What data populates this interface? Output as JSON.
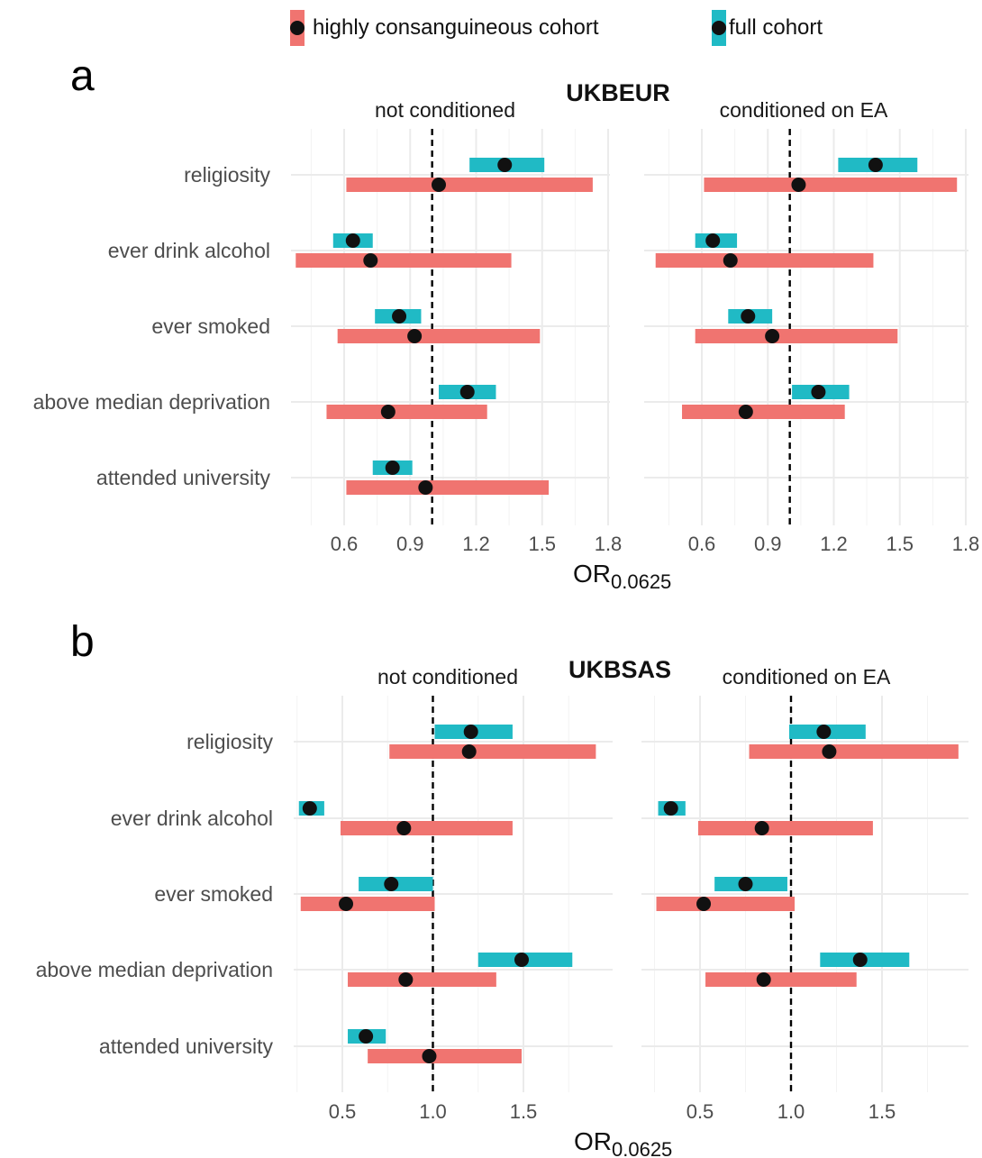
{
  "legend": {
    "items": [
      {
        "label": "highly consanguineous cohort",
        "color": "#F07470"
      },
      {
        "label": "full cohort",
        "color": "#20BAC5"
      }
    ]
  },
  "chart_data": [
    {
      "type": "forest",
      "panel_letter": "a",
      "title": "UKBEUR",
      "xlabel_main": "OR",
      "xlabel_sub": "0.0625",
      "reference_line": 1.0,
      "x_ticks": [
        0.6,
        0.9,
        1.2,
        1.5,
        1.8
      ],
      "x_tick_labels": [
        "0.6",
        "0.9",
        "1.2",
        "1.5",
        "1.8"
      ],
      "xlim": [
        0.45,
        1.85
      ],
      "categories": [
        "religiosity",
        "ever drink alcohol",
        "ever smoked",
        "above median deprivation",
        "attended university"
      ],
      "facets": [
        {
          "label": "not conditioned",
          "series": [
            {
              "name": "full cohort",
              "color": "#20BAC5",
              "points": [
                {
                  "category": "religiosity",
                  "estimate": 1.33,
                  "low": 1.17,
                  "high": 1.51
                },
                {
                  "category": "ever drink alcohol",
                  "estimate": 0.64,
                  "low": 0.55,
                  "high": 0.73
                },
                {
                  "category": "ever smoked",
                  "estimate": 0.85,
                  "low": 0.74,
                  "high": 0.95
                },
                {
                  "category": "above median deprivation",
                  "estimate": 1.16,
                  "low": 1.03,
                  "high": 1.29
                },
                {
                  "category": "attended university",
                  "estimate": 0.82,
                  "low": 0.73,
                  "high": 0.91
                }
              ]
            },
            {
              "name": "highly consanguineous cohort",
              "color": "#F07470",
              "points": [
                {
                  "category": "religiosity",
                  "estimate": 1.03,
                  "low": 0.61,
                  "high": 1.73
                },
                {
                  "category": "ever drink alcohol",
                  "estimate": 0.72,
                  "low": 0.38,
                  "high": 1.36
                },
                {
                  "category": "ever smoked",
                  "estimate": 0.92,
                  "low": 0.57,
                  "high": 1.49
                },
                {
                  "category": "above median deprivation",
                  "estimate": 0.8,
                  "low": 0.52,
                  "high": 1.25
                },
                {
                  "category": "attended university",
                  "estimate": 0.97,
                  "low": 0.61,
                  "high": 1.53
                }
              ]
            }
          ]
        },
        {
          "label": "conditioned on EA",
          "series": [
            {
              "name": "full cohort",
              "color": "#20BAC5",
              "points": [
                {
                  "category": "religiosity",
                  "estimate": 1.39,
                  "low": 1.22,
                  "high": 1.58
                },
                {
                  "category": "ever drink alcohol",
                  "estimate": 0.65,
                  "low": 0.57,
                  "high": 0.76
                },
                {
                  "category": "ever smoked",
                  "estimate": 0.81,
                  "low": 0.72,
                  "high": 0.92
                },
                {
                  "category": "above median deprivation",
                  "estimate": 1.13,
                  "low": 1.01,
                  "high": 1.27
                },
                {
                  "category": "attended university",
                  "estimate": null,
                  "low": null,
                  "high": null
                }
              ]
            },
            {
              "name": "highly consanguineous cohort",
              "color": "#F07470",
              "points": [
                {
                  "category": "religiosity",
                  "estimate": 1.04,
                  "low": 0.61,
                  "high": 1.76
                },
                {
                  "category": "ever drink alcohol",
                  "estimate": 0.73,
                  "low": 0.39,
                  "high": 1.38
                },
                {
                  "category": "ever smoked",
                  "estimate": 0.92,
                  "low": 0.57,
                  "high": 1.49
                },
                {
                  "category": "above median deprivation",
                  "estimate": 0.8,
                  "low": 0.51,
                  "high": 1.25
                },
                {
                  "category": "attended university",
                  "estimate": null,
                  "low": null,
                  "high": null
                }
              ]
            }
          ]
        }
      ]
    },
    {
      "type": "forest",
      "panel_letter": "b",
      "title": "UKBSAS",
      "xlabel_main": "OR",
      "xlabel_sub": "0.0625",
      "reference_line": 1.0,
      "x_ticks": [
        0.5,
        1.0,
        1.5
      ],
      "x_tick_labels": [
        "0.5",
        "1.0",
        "1.5"
      ],
      "xlim": [
        0.25,
        2.0
      ],
      "categories": [
        "religiosity",
        "ever drink alcohol",
        "ever smoked",
        "above median deprivation",
        "attended university"
      ],
      "facets": [
        {
          "label": "not conditioned",
          "series": [
            {
              "name": "full cohort",
              "color": "#20BAC5",
              "points": [
                {
                  "category": "religiosity",
                  "estimate": 1.21,
                  "low": 1.01,
                  "high": 1.44
                },
                {
                  "category": "ever drink alcohol",
                  "estimate": 0.32,
                  "low": 0.26,
                  "high": 0.4
                },
                {
                  "category": "ever smoked",
                  "estimate": 0.77,
                  "low": 0.59,
                  "high": 1.0
                },
                {
                  "category": "above median deprivation",
                  "estimate": 1.49,
                  "low": 1.25,
                  "high": 1.77
                },
                {
                  "category": "attended university",
                  "estimate": 0.63,
                  "low": 0.53,
                  "high": 0.74
                }
              ]
            },
            {
              "name": "highly consanguineous cohort",
              "color": "#F07470",
              "points": [
                {
                  "category": "religiosity",
                  "estimate": 1.2,
                  "low": 0.76,
                  "high": 1.9
                },
                {
                  "category": "ever drink alcohol",
                  "estimate": 0.84,
                  "low": 0.49,
                  "high": 1.44
                },
                {
                  "category": "ever smoked",
                  "estimate": 0.52,
                  "low": 0.27,
                  "high": 1.01
                },
                {
                  "category": "above median deprivation",
                  "estimate": 0.85,
                  "low": 0.53,
                  "high": 1.35
                },
                {
                  "category": "attended university",
                  "estimate": 0.98,
                  "low": 0.64,
                  "high": 1.49
                }
              ]
            }
          ]
        },
        {
          "label": "conditioned on EA",
          "series": [
            {
              "name": "full cohort",
              "color": "#20BAC5",
              "points": [
                {
                  "category": "religiosity",
                  "estimate": 1.18,
                  "low": 0.99,
                  "high": 1.41
                },
                {
                  "category": "ever drink alcohol",
                  "estimate": 0.34,
                  "low": 0.27,
                  "high": 0.42
                },
                {
                  "category": "ever smoked",
                  "estimate": 0.75,
                  "low": 0.58,
                  "high": 0.98
                },
                {
                  "category": "above median deprivation",
                  "estimate": 1.38,
                  "low": 1.16,
                  "high": 1.65
                },
                {
                  "category": "attended university",
                  "estimate": null,
                  "low": null,
                  "high": null
                }
              ]
            },
            {
              "name": "highly consanguineous cohort",
              "color": "#F07470",
              "points": [
                {
                  "category": "religiosity",
                  "estimate": 1.21,
                  "low": 0.77,
                  "high": 1.92
                },
                {
                  "category": "ever drink alcohol",
                  "estimate": 0.84,
                  "low": 0.49,
                  "high": 1.45
                },
                {
                  "category": "ever smoked",
                  "estimate": 0.52,
                  "low": 0.26,
                  "high": 1.02
                },
                {
                  "category": "above median deprivation",
                  "estimate": 0.85,
                  "low": 0.53,
                  "high": 1.36
                },
                {
                  "category": "attended university",
                  "estimate": null,
                  "low": null,
                  "high": null
                }
              ]
            }
          ]
        }
      ]
    }
  ]
}
